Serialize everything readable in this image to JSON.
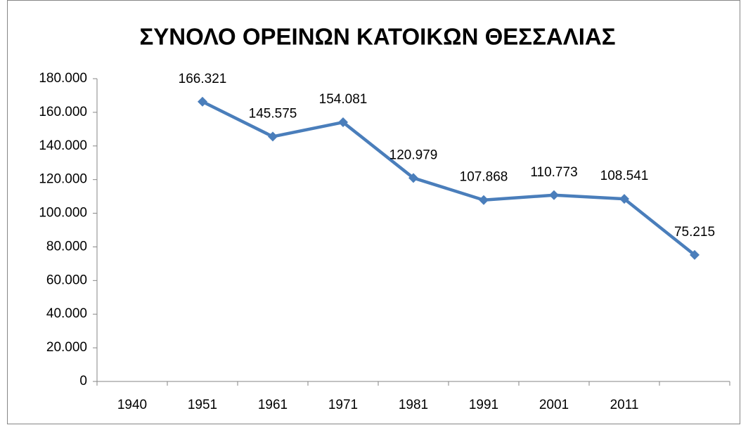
{
  "chart_data": {
    "type": "line",
    "title": "ΣΥΝΟΛΟ ΟΡΕΙΝΩΝ ΚΑΤΟΙΚΩΝ ΘΕΣΣΑΛΙΑΣ",
    "categories": [
      "1940",
      "1951",
      "1961",
      "1971",
      "1981",
      "1991",
      "2001",
      "2011",
      null
    ],
    "series": [
      {
        "name": "ΣΥΝΟΛΟ ΟΡΕΙΝΩΝ ΚΑΤΟΙΚΩΝ ΘΕΣΣΑΛΙΑΣ",
        "color": "#4a7ebb",
        "values": [
          null,
          166321,
          145575,
          154081,
          120979,
          107868,
          110773,
          108541,
          75215
        ],
        "value_labels": [
          null,
          "166.321",
          "145.575",
          "154.081",
          "120.979",
          "107.868",
          "110.773",
          "108.541",
          "75.215"
        ]
      }
    ],
    "ylim": [
      0,
      180000
    ],
    "yticks": [
      0,
      {
        "value": 20000,
        "label": "20.000"
      },
      {
        "value": 40000,
        "label": "40.000"
      },
      {
        "value": 60000,
        "label": "60.000"
      },
      {
        "value": 80000,
        "label": "80.000"
      },
      {
        "value": 100000,
        "label": "100.000"
      },
      {
        "value": 120000,
        "label": "120.000"
      },
      {
        "value": 140000,
        "label": "140.000"
      },
      {
        "value": 160000,
        "label": "160.000"
      },
      {
        "value": 180000,
        "label": "180.000"
      }
    ],
    "grid": false
  }
}
